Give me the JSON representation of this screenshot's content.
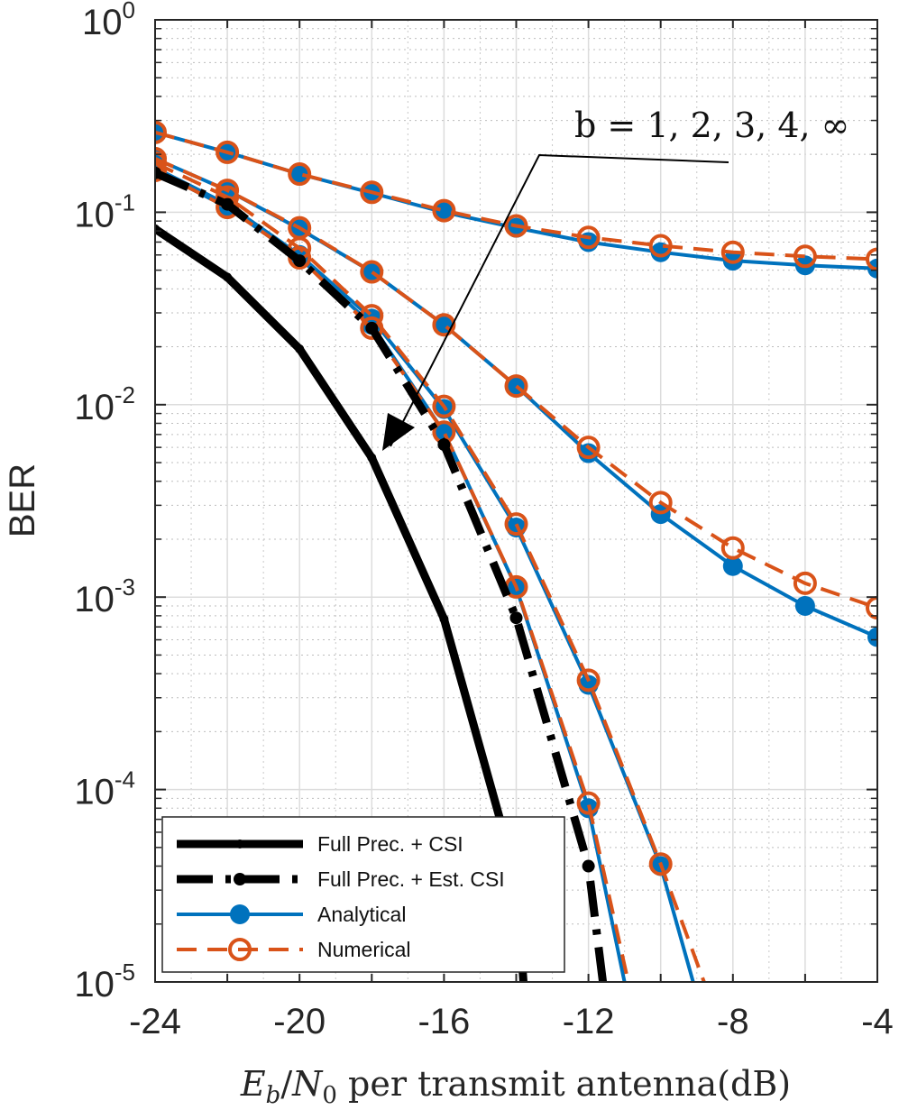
{
  "chart_data": {
    "type": "line",
    "title": "",
    "xlabel": "E_b/N_0 per transmit antenna(dB)",
    "xlabel_parts": {
      "sym": "E",
      "sub": "b",
      "slash": "/",
      "sym2": "N",
      "sub2": "0",
      "rest": " per transmit antenna(dB)"
    },
    "ylabel": "BER",
    "xlim": [
      -24,
      -4
    ],
    "ylim": [
      1e-05,
      1
    ],
    "yscale": "log",
    "grid": true,
    "x_ticks": [
      "-24",
      "-20",
      "-16",
      "-12",
      "-8",
      "-4"
    ],
    "y_ticks": [
      {
        "base": "10",
        "exp": "0"
      },
      {
        "base": "10",
        "exp": "-1"
      },
      {
        "base": "10",
        "exp": "-2"
      },
      {
        "base": "10",
        "exp": "-3"
      },
      {
        "base": "10",
        "exp": "-4"
      },
      {
        "base": "10",
        "exp": "-5"
      }
    ],
    "annotation": {
      "text": "b = 1, 2, 3, 4, ∞"
    },
    "legend": {
      "placement": "bottom-left",
      "entries": [
        {
          "label": "Full Prec. + CSI",
          "key": "full_csi"
        },
        {
          "label": "Full Prec. + Est. CSI",
          "key": "full_est"
        },
        {
          "label": "Analytical",
          "key": "analytical"
        },
        {
          "label": "Numerical",
          "key": "numerical"
        }
      ]
    },
    "colors": {
      "full": "#000000",
      "analytical": "#0072BD",
      "numerical": "#D95319"
    },
    "x": [
      -24,
      -22,
      -20,
      -18,
      -16,
      -14,
      -12,
      -10,
      -8,
      -6,
      -4
    ],
    "series": [
      {
        "name": "Full Prec. + CSI",
        "style": "full_csi",
        "x": [
          -24,
          -22,
          -20,
          -18,
          -16,
          -14,
          -13.8
        ],
        "values": [
          0.082,
          0.046,
          0.0195,
          0.0053,
          0.00077,
          3.5e-05,
          1e-05
        ]
      },
      {
        "name": "Full Prec. + Est. CSI",
        "style": "full_est",
        "x": [
          -24,
          -22,
          -20,
          -18,
          -16,
          -14,
          -12,
          -11.6
        ],
        "values": [
          0.16,
          0.11,
          0.056,
          0.025,
          0.0062,
          0.00078,
          4e-05,
          1e-05
        ]
      },
      {
        "name": "Analytical b=1",
        "style": "analytical",
        "x": [
          -24,
          -22,
          -20,
          -18,
          -16,
          -14,
          -12,
          -10,
          -8,
          -6,
          -4
        ],
        "values": [
          0.26,
          0.205,
          0.158,
          0.126,
          0.1,
          0.083,
          0.07,
          0.062,
          0.056,
          0.053,
          0.051
        ]
      },
      {
        "name": "Numerical b=1",
        "style": "numerical",
        "x": [
          -24,
          -22,
          -20,
          -18,
          -16,
          -14,
          -12,
          -10,
          -8,
          -6,
          -4
        ],
        "values": [
          0.26,
          0.205,
          0.158,
          0.127,
          0.102,
          0.085,
          0.074,
          0.067,
          0.062,
          0.059,
          0.057
        ]
      },
      {
        "name": "Analytical b=2",
        "style": "analytical",
        "x": [
          -24,
          -22,
          -20,
          -18,
          -16,
          -14,
          -12,
          -10,
          -8,
          -6,
          -4
        ],
        "values": [
          0.19,
          0.13,
          0.082,
          0.049,
          0.026,
          0.0125,
          0.0056,
          0.0027,
          0.00145,
          0.0009,
          0.00062
        ]
      },
      {
        "name": "Numerical b=2",
        "style": "numerical",
        "x": [
          -24,
          -22,
          -20,
          -18,
          -16,
          -14,
          -12,
          -10,
          -8,
          -6,
          -4
        ],
        "values": [
          0.19,
          0.13,
          0.083,
          0.049,
          0.026,
          0.0125,
          0.006,
          0.0031,
          0.0018,
          0.00118,
          0.00088
        ]
      },
      {
        "name": "Analytical b=3",
        "style": "analytical",
        "x": [
          -24,
          -22,
          -20,
          -18,
          -16,
          -14,
          -12,
          -10,
          -9.1
        ],
        "values": [
          0.17,
          0.11,
          0.06,
          0.028,
          0.0095,
          0.0023,
          0.00035,
          4e-05,
          1e-05
        ]
      },
      {
        "name": "Numerical b=3",
        "style": "numerical",
        "x": [
          -24,
          -22,
          -20,
          -18,
          -16,
          -14,
          -12,
          -10,
          -8.8
        ],
        "values": [
          0.18,
          0.12,
          0.065,
          0.029,
          0.0098,
          0.0024,
          0.00037,
          4.1e-05,
          1e-05
        ]
      },
      {
        "name": "Analytical b=4",
        "style": "analytical",
        "x": [
          -24,
          -22,
          -20,
          -18,
          -16,
          -14,
          -12,
          -11.0
        ],
        "values": [
          0.165,
          0.106,
          0.058,
          0.026,
          0.0072,
          0.00112,
          8e-05,
          1e-05
        ]
      },
      {
        "name": "Numerical b=4",
        "style": "numerical",
        "x": [
          -24,
          -22,
          -20,
          -18,
          -16,
          -14,
          -12,
          -10.9
        ],
        "values": [
          0.165,
          0.106,
          0.058,
          0.025,
          0.0072,
          0.00113,
          8.5e-05,
          1e-05
        ]
      }
    ]
  }
}
